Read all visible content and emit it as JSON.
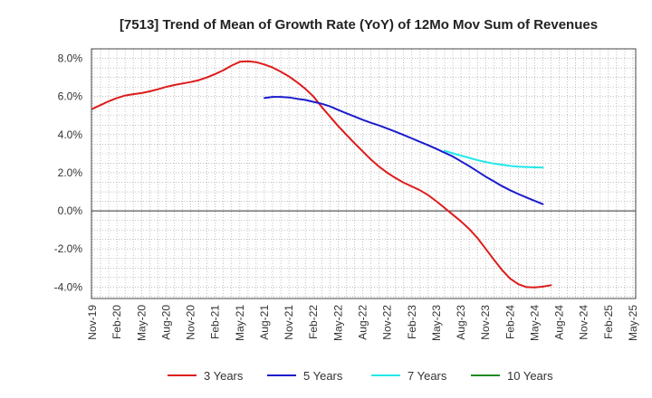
{
  "chart_data": {
    "type": "line",
    "title": "[7513]  Trend of Mean of Growth Rate (YoY) of 12Mo Mov Sum of Revenues",
    "xlabel": "",
    "ylabel": "",
    "ylim": [
      -4.6,
      8.5
    ],
    "y_ticks": [
      8.0,
      6.0,
      4.0,
      2.0,
      0.0,
      -2.0,
      -4.0
    ],
    "y_tick_labels": [
      "8.0%",
      "6.0%",
      "4.0%",
      "2.0%",
      "0.0%",
      "-2.0%",
      "-4.0%"
    ],
    "x_tick_labels": [
      "Nov-19",
      "Feb-20",
      "May-20",
      "Aug-20",
      "Nov-20",
      "Feb-21",
      "May-21",
      "Aug-21",
      "Nov-21",
      "Feb-22",
      "May-22",
      "Aug-22",
      "Nov-22",
      "Feb-23",
      "May-23",
      "Aug-23",
      "Nov-23",
      "Feb-24",
      "May-24",
      "Aug-24",
      "Nov-24",
      "Feb-25",
      "May-25"
    ],
    "grid": true,
    "legend_position": "bottom",
    "series": [
      {
        "name": "3 Years",
        "color": "#dd1c1c",
        "start_month": 0,
        "values": [
          5.35,
          5.55,
          5.75,
          5.92,
          6.05,
          6.12,
          6.18,
          6.27,
          6.38,
          6.5,
          6.6,
          6.68,
          6.76,
          6.86,
          7.0,
          7.18,
          7.38,
          7.62,
          7.82,
          7.85,
          7.8,
          7.68,
          7.52,
          7.3,
          7.05,
          6.75,
          6.4,
          6.0,
          5.45,
          4.95,
          4.45,
          4.0,
          3.55,
          3.12,
          2.7,
          2.32,
          2.0,
          1.72,
          1.48,
          1.28,
          1.08,
          0.82,
          0.5,
          0.15,
          -0.2,
          -0.55,
          -0.95,
          -1.42,
          -1.98,
          -2.55,
          -3.1,
          -3.55,
          -3.85,
          -4.0,
          -4.02,
          -3.98,
          -3.9
        ]
      },
      {
        "name": "5 Years",
        "color": "#1c1ccc",
        "start_month": 21,
        "values": [
          5.92,
          5.98,
          5.98,
          5.95,
          5.88,
          5.82,
          5.72,
          5.62,
          5.48,
          5.3,
          5.12,
          4.95,
          4.78,
          4.62,
          4.48,
          4.32,
          4.15,
          3.98,
          3.8,
          3.62,
          3.44,
          3.25,
          3.05,
          2.85,
          2.6,
          2.35,
          2.08,
          1.8,
          1.55,
          1.3,
          1.08,
          0.88,
          0.7,
          0.52,
          0.35
        ]
      },
      {
        "name": "7 Years",
        "color": "#22e8e8",
        "start_month": 43,
        "values": [
          3.15,
          3.02,
          2.9,
          2.78,
          2.66,
          2.56,
          2.48,
          2.42,
          2.36,
          2.32,
          2.3,
          2.28,
          2.27
        ]
      },
      {
        "name": "10 Years",
        "color": "#228b22",
        "start_month": 0,
        "values": []
      }
    ]
  }
}
